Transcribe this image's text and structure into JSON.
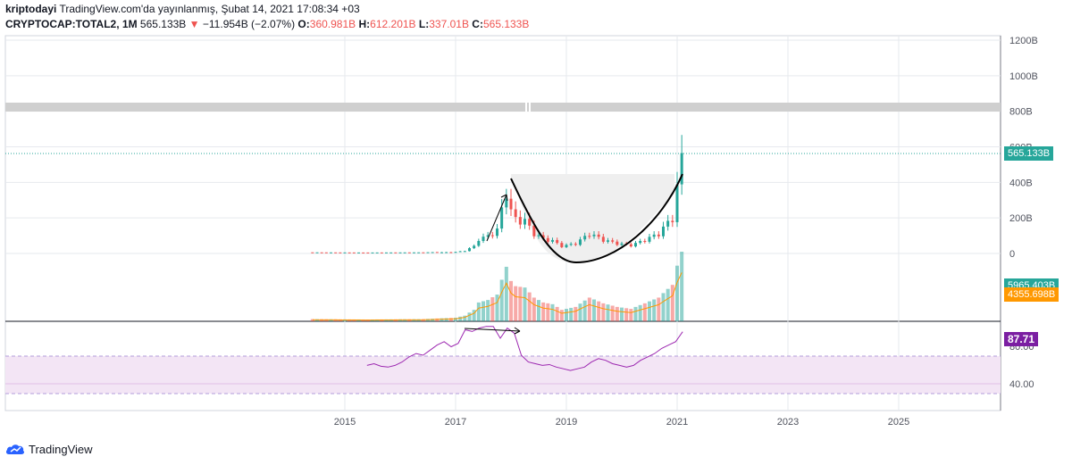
{
  "header": {
    "author": "kriptodayi",
    "published_text": "TradingView.com'da yayınlanmış, Şubat 14, 2021 17:08:34 +03",
    "symbol": "CRYPTOCAP:TOTAL2, 1M",
    "price": "565.133B",
    "change_arrow": "▼",
    "change": "−11.954B (−2.07%)",
    "open_label": "O:",
    "open": "360.981B",
    "high_label": "H:",
    "high": "612.201B",
    "low_label": "L:",
    "low": "337.01B",
    "close_label": "C:",
    "close": "565.133B"
  },
  "price_axis": {
    "ticks": [
      "1200B",
      "1000B",
      "800B",
      "600B",
      "400B",
      "200B",
      "0"
    ],
    "current_price_tag": "565.133B",
    "volume_tag": "5965.403B",
    "volume_ma_tag": "4355.698B"
  },
  "rsi_axis": {
    "ticks": [
      "80.00",
      "40.00"
    ],
    "value_tag": "87.71"
  },
  "time_axis": {
    "labels": [
      "2015",
      "2017",
      "2019",
      "2021",
      "2023",
      "2025"
    ]
  },
  "footer": {
    "brand": "TradingView"
  },
  "colors": {
    "up": "#26a69a",
    "down": "#ef5350",
    "rsi_line": "#9c27b0",
    "rsi_band": "#f3e5f5",
    "grid": "#e6e9ee",
    "current_tag": "#26a69a",
    "vol_ma_tag": "#ff9800",
    "rsi_tag": "#7b1fa2"
  },
  "chart_data": {
    "type": "candlestick",
    "timeframe": "1M",
    "price_ylim": [
      0,
      1200
    ],
    "price_series": [
      {
        "date": "2014-06",
        "close": 4
      },
      {
        "date": "2015-06",
        "close": 3
      },
      {
        "date": "2016-06",
        "close": 4
      },
      {
        "date": "2017-01",
        "close": 8
      },
      {
        "date": "2017-03",
        "close": 15
      },
      {
        "date": "2017-05",
        "close": 40
      },
      {
        "date": "2017-06",
        "close": 80
      },
      {
        "date": "2017-08",
        "close": 95
      },
      {
        "date": "2017-10",
        "close": 130
      },
      {
        "date": "2017-12",
        "close": 350
      },
      {
        "date": "2018-01",
        "close": 230
      },
      {
        "date": "2018-02",
        "close": 190
      },
      {
        "date": "2018-04",
        "close": 180
      },
      {
        "date": "2018-06",
        "close": 110
      },
      {
        "date": "2018-08",
        "close": 80
      },
      {
        "date": "2018-10",
        "close": 70
      },
      {
        "date": "2018-12",
        "close": 40
      },
      {
        "date": "2019-03",
        "close": 55
      },
      {
        "date": "2019-06",
        "close": 110
      },
      {
        "date": "2019-09",
        "close": 75
      },
      {
        "date": "2019-12",
        "close": 55
      },
      {
        "date": "2020-03",
        "close": 45
      },
      {
        "date": "2020-06",
        "close": 75
      },
      {
        "date": "2020-09",
        "close": 110
      },
      {
        "date": "2020-12",
        "close": 200
      },
      {
        "date": "2021-01",
        "close": 360
      },
      {
        "date": "2021-02",
        "close": 565
      }
    ],
    "rsi_value": 87.71,
    "rsi_levels": [
      70,
      30
    ]
  }
}
